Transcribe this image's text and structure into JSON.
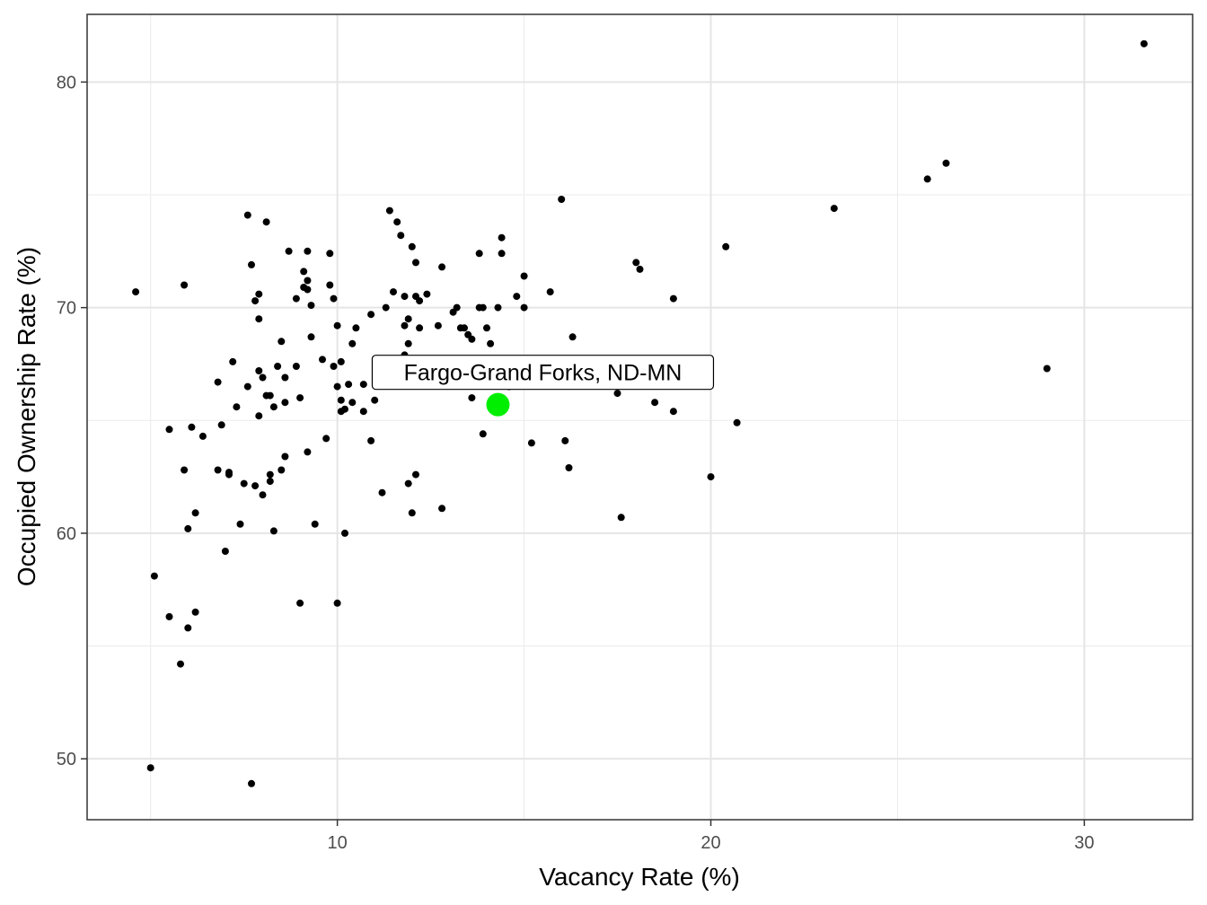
{
  "chart_data": {
    "type": "scatter",
    "title": "",
    "xlabel": "Vacancy Rate (%)",
    "ylabel": "Occupied Ownership Rate (%)",
    "xlim": [
      3.3,
      32.9
    ],
    "ylim": [
      47.3,
      83.0
    ],
    "x_ticks": [
      10,
      20,
      30
    ],
    "y_ticks": [
      50,
      60,
      70,
      80
    ],
    "x_minor": [
      5,
      15,
      25
    ],
    "y_minor": [
      55,
      65,
      75
    ],
    "grid": true,
    "point_color": "#000000",
    "highlight_color": "#00ee00",
    "highlight": {
      "label": "Fargo-Grand Forks, ND-MN",
      "x": 14.3,
      "y": 65.7
    },
    "points": [
      [
        4.6,
        70.7
      ],
      [
        5.0,
        49.6
      ],
      [
        5.1,
        58.1
      ],
      [
        5.5,
        56.3
      ],
      [
        5.5,
        64.6
      ],
      [
        5.8,
        54.2
      ],
      [
        5.9,
        62.8
      ],
      [
        5.9,
        71.0
      ],
      [
        6.0,
        55.8
      ],
      [
        6.0,
        60.2
      ],
      [
        6.1,
        64.7
      ],
      [
        6.2,
        56.5
      ],
      [
        6.2,
        60.9
      ],
      [
        6.4,
        64.3
      ],
      [
        6.8,
        62.8
      ],
      [
        6.8,
        66.7
      ],
      [
        6.9,
        64.8
      ],
      [
        7.0,
        59.2
      ],
      [
        7.1,
        62.6
      ],
      [
        7.1,
        62.7
      ],
      [
        7.2,
        67.6
      ],
      [
        7.3,
        65.6
      ],
      [
        7.4,
        60.4
      ],
      [
        7.5,
        62.2
      ],
      [
        7.6,
        74.1
      ],
      [
        7.6,
        66.5
      ],
      [
        7.7,
        71.9
      ],
      [
        7.7,
        48.9
      ],
      [
        7.8,
        62.1
      ],
      [
        7.8,
        70.3
      ],
      [
        7.9,
        70.6
      ],
      [
        7.9,
        69.5
      ],
      [
        7.9,
        67.2
      ],
      [
        7.9,
        65.2
      ],
      [
        8.0,
        66.9
      ],
      [
        8.0,
        61.7
      ],
      [
        8.1,
        73.8
      ],
      [
        8.1,
        66.1
      ],
      [
        8.2,
        62.6
      ],
      [
        8.2,
        62.3
      ],
      [
        8.2,
        66.1
      ],
      [
        8.3,
        65.6
      ],
      [
        8.3,
        60.1
      ],
      [
        8.4,
        67.4
      ],
      [
        8.5,
        62.8
      ],
      [
        8.5,
        68.5
      ],
      [
        8.6,
        66.9
      ],
      [
        8.6,
        63.4
      ],
      [
        8.6,
        65.8
      ],
      [
        8.7,
        72.5
      ],
      [
        8.9,
        70.4
      ],
      [
        8.9,
        67.4
      ],
      [
        9.0,
        56.9
      ],
      [
        9.0,
        66.0
      ],
      [
        9.1,
        70.9
      ],
      [
        9.1,
        71.6
      ],
      [
        9.2,
        71.2
      ],
      [
        9.2,
        72.5
      ],
      [
        9.2,
        70.8
      ],
      [
        9.2,
        63.6
      ],
      [
        9.3,
        70.1
      ],
      [
        9.3,
        68.7
      ],
      [
        9.4,
        60.4
      ],
      [
        9.6,
        67.7
      ],
      [
        9.7,
        64.2
      ],
      [
        9.8,
        72.4
      ],
      [
        9.8,
        71.0
      ],
      [
        9.9,
        67.4
      ],
      [
        9.9,
        70.4
      ],
      [
        10.0,
        69.2
      ],
      [
        10.0,
        66.5
      ],
      [
        10.0,
        56.9
      ],
      [
        10.1,
        67.6
      ],
      [
        10.1,
        65.9
      ],
      [
        10.1,
        65.4
      ],
      [
        10.2,
        60.0
      ],
      [
        10.2,
        65.5
      ],
      [
        10.3,
        66.6
      ],
      [
        10.4,
        68.4
      ],
      [
        10.4,
        65.8
      ],
      [
        10.5,
        69.1
      ],
      [
        10.7,
        66.6
      ],
      [
        10.7,
        65.4
      ],
      [
        10.9,
        64.1
      ],
      [
        10.9,
        69.7
      ],
      [
        11.0,
        65.9
      ],
      [
        11.1,
        66.7
      ],
      [
        11.2,
        61.8
      ],
      [
        11.3,
        70.0
      ],
      [
        11.4,
        74.3
      ],
      [
        11.5,
        70.7
      ],
      [
        11.6,
        73.8
      ],
      [
        11.7,
        73.2
      ],
      [
        11.8,
        70.5
      ],
      [
        11.8,
        69.2
      ],
      [
        11.8,
        67.9
      ],
      [
        11.9,
        69.5
      ],
      [
        11.9,
        68.4
      ],
      [
        11.9,
        62.2
      ],
      [
        12.0,
        72.7
      ],
      [
        12.0,
        60.9
      ],
      [
        12.1,
        72.0
      ],
      [
        12.1,
        70.5
      ],
      [
        12.1,
        62.6
      ],
      [
        12.2,
        70.3
      ],
      [
        12.2,
        69.1
      ],
      [
        12.4,
        70.6
      ],
      [
        12.7,
        69.2
      ],
      [
        12.8,
        71.8
      ],
      [
        12.8,
        61.1
      ],
      [
        13.1,
        69.8
      ],
      [
        13.2,
        70.0
      ],
      [
        13.3,
        69.1
      ],
      [
        13.4,
        69.1
      ],
      [
        13.5,
        68.8
      ],
      [
        13.6,
        68.6
      ],
      [
        13.6,
        66.0
      ],
      [
        13.8,
        72.4
      ],
      [
        13.8,
        70.0
      ],
      [
        13.9,
        70.0
      ],
      [
        13.9,
        64.4
      ],
      [
        14.0,
        69.1
      ],
      [
        14.1,
        68.4
      ],
      [
        14.2,
        65.8
      ],
      [
        14.3,
        70.0
      ],
      [
        14.4,
        73.1
      ],
      [
        14.4,
        72.4
      ],
      [
        14.6,
        66.5
      ],
      [
        14.8,
        70.5
      ],
      [
        15.0,
        71.4
      ],
      [
        15.0,
        70.0
      ],
      [
        15.2,
        64.0
      ],
      [
        15.7,
        70.7
      ],
      [
        16.0,
        74.8
      ],
      [
        16.1,
        64.1
      ],
      [
        16.2,
        62.9
      ],
      [
        16.3,
        68.7
      ],
      [
        17.5,
        66.2
      ],
      [
        17.6,
        60.7
      ],
      [
        18.0,
        72.0
      ],
      [
        18.1,
        71.7
      ],
      [
        18.5,
        65.8
      ],
      [
        19.0,
        70.4
      ],
      [
        19.0,
        65.4
      ],
      [
        20.0,
        62.5
      ],
      [
        20.4,
        72.7
      ],
      [
        20.7,
        64.9
      ],
      [
        23.3,
        74.4
      ],
      [
        25.8,
        75.7
      ],
      [
        26.3,
        76.4
      ],
      [
        29.0,
        67.3
      ],
      [
        31.6,
        81.7
      ]
    ]
  }
}
